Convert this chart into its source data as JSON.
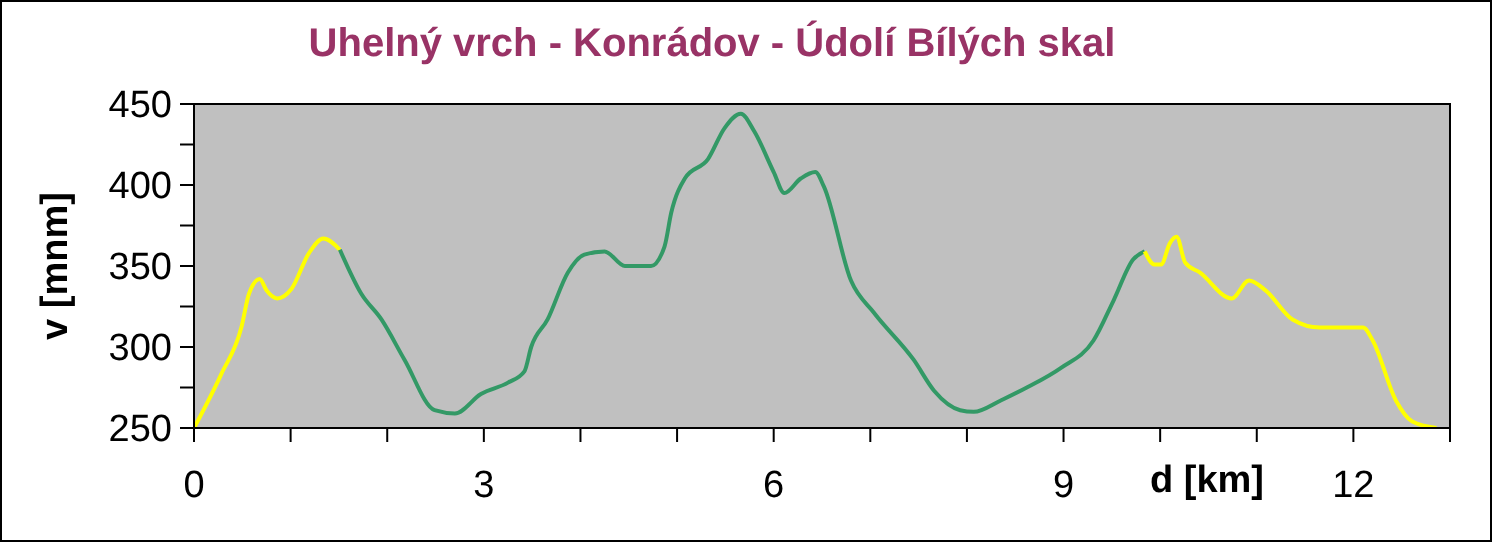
{
  "chart_data": {
    "type": "line",
    "title": "Uhelný vrch - Konrádov - Údolí Bílých skal",
    "xlabel": "d [km]",
    "ylabel": "v [mnm]",
    "xlim": [
      0,
      13
    ],
    "ylim": [
      250,
      450
    ],
    "xticks": [
      0,
      {
        "value": 1,
        "label": null
      },
      {
        "value": 2,
        "label": null
      },
      3,
      {
        "value": 4,
        "label": null
      },
      {
        "value": 5,
        "label": null
      },
      6,
      {
        "value": 7,
        "label": null
      },
      {
        "value": 8,
        "label": null
      },
      9,
      {
        "value": 10,
        "label": null
      },
      {
        "value": 11,
        "label": null
      },
      12,
      {
        "value": 13,
        "label": null
      }
    ],
    "yticks": [
      250,
      {
        "value": 275,
        "label": null
      },
      300,
      {
        "value": 325,
        "label": null
      },
      350,
      {
        "value": 375,
        "label": null
      },
      400,
      {
        "value": 425,
        "label": null
      },
      450
    ],
    "series": [
      {
        "color": "#ffff00",
        "x": [
          0,
          0.28,
          0.49,
          0.57,
          0.68,
          0.75,
          0.86,
          1.01,
          1.19,
          1.34,
          1.51
        ],
        "values": [
          250,
          283,
          312,
          333,
          342,
          335,
          330,
          336,
          358,
          367,
          360
        ]
      },
      {
        "color": "#339966",
        "x": [
          1.51,
          1.73,
          1.94,
          2.18,
          2.49,
          2.7,
          2.97,
          3.25,
          3.42,
          3.49,
          3.66,
          3.87,
          4.04,
          4.25,
          4.46,
          4.73,
          4.87,
          4.94,
          5.08,
          5.32,
          5.49,
          5.66,
          5.8,
          6.0,
          6.11,
          6.28,
          6.43,
          6.52,
          6.8,
          7.04,
          7.45,
          7.66,
          7.93,
          8.07,
          8.35,
          8.62,
          8.97,
          9.31,
          9.52,
          9.72,
          9.84
        ],
        "values": [
          360,
          333,
          317,
          292,
          261,
          259,
          271,
          278,
          285,
          300,
          317,
          346,
          357,
          359,
          350,
          350,
          362,
          383,
          404,
          416,
          435,
          444,
          433,
          408,
          395,
          404,
          408,
          399,
          341,
          321,
          292,
          273,
          261,
          260,
          267,
          275,
          287,
          304,
          329,
          354,
          359
        ]
      },
      {
        "color": "#ffff00",
        "x": [
          9.84,
          9.94,
          10.01,
          10.1,
          10.17,
          10.26,
          10.41,
          10.74,
          10.92,
          11.09,
          11.37,
          11.65,
          12.1,
          12.2,
          12.44,
          12.61,
          12.86
        ],
        "values": [
          359,
          351,
          351,
          364,
          368,
          352,
          346,
          330,
          341,
          335,
          317,
          312,
          312,
          304,
          267,
          254,
          250
        ]
      }
    ]
  }
}
